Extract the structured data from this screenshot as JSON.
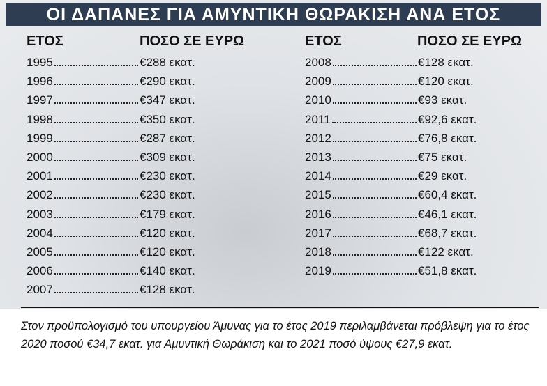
{
  "header": {
    "title": "ΟΙ ΔΑΠΑΝΕΣ ΓΙΑ ΑΜΥΝΤΙΚΗ ΘΩΡΑΚΙΣΗ ΑΝΑ ΕΤΟΣ"
  },
  "table": {
    "left": {
      "year_header": "ΕΤΟΣ",
      "amount_header": "ΠΟΣΟ ΣΕ ΕΥΡΩ",
      "rows": [
        {
          "year": "1995",
          "amount": "€288 εκατ."
        },
        {
          "year": "1996",
          "amount": "€290 εκατ."
        },
        {
          "year": "1997",
          "amount": "€347 εκατ."
        },
        {
          "year": "1998",
          "amount": "€350 εκατ."
        },
        {
          "year": "1999",
          "amount": "€287 εκατ."
        },
        {
          "year": "2000",
          "amount": "€309 εκατ."
        },
        {
          "year": "2001",
          "amount": "€230 εκατ."
        },
        {
          "year": "2002",
          "amount": "€230 εκατ."
        },
        {
          "year": "2003",
          "amount": "€179 εκατ."
        },
        {
          "year": "2004",
          "amount": "€120 εκατ."
        },
        {
          "year": "2005",
          "amount": "€120 εκατ."
        },
        {
          "year": "2006",
          "amount": "€140 εκατ."
        },
        {
          "year": "2007",
          "amount": "€128 εκατ."
        }
      ]
    },
    "right": {
      "year_header": "ΕΤΟΣ",
      "amount_header": "ΠΟΣΟ ΣΕ ΕΥΡΩ",
      "rows": [
        {
          "year": "2008",
          "amount": "€128 εκατ."
        },
        {
          "year": "2009",
          "amount": "€120 εκατ."
        },
        {
          "year": "2010",
          "amount": "€93 εκατ."
        },
        {
          "year": "2011",
          "amount": "€92,6 εκατ."
        },
        {
          "year": "2012",
          "amount": "€76,8 εκατ."
        },
        {
          "year": "2013",
          "amount": "€75 εκατ."
        },
        {
          "year": "2014",
          "amount": "€29 εκατ."
        },
        {
          "year": "2015",
          "amount": "€60,4 εκατ."
        },
        {
          "year": "2016",
          "amount": "€46,1 εκατ."
        },
        {
          "year": "2017",
          "amount": "€68,7 εκατ."
        },
        {
          "year": "2018",
          "amount": "€122 εκατ."
        },
        {
          "year": "2019",
          "amount": "€51,8 εκατ."
        }
      ]
    }
  },
  "footnote": "Στον προϋπολογισμό του υπουργείου Άμυνας για το έτος 2019 περιλαμβάνεται πρόβλεψη για το έτος 2020 ποσού €34,7 εκατ. για Αμυντική Θωράκιση και το 2021 ποσό ύψους €27,9 εκατ."
}
